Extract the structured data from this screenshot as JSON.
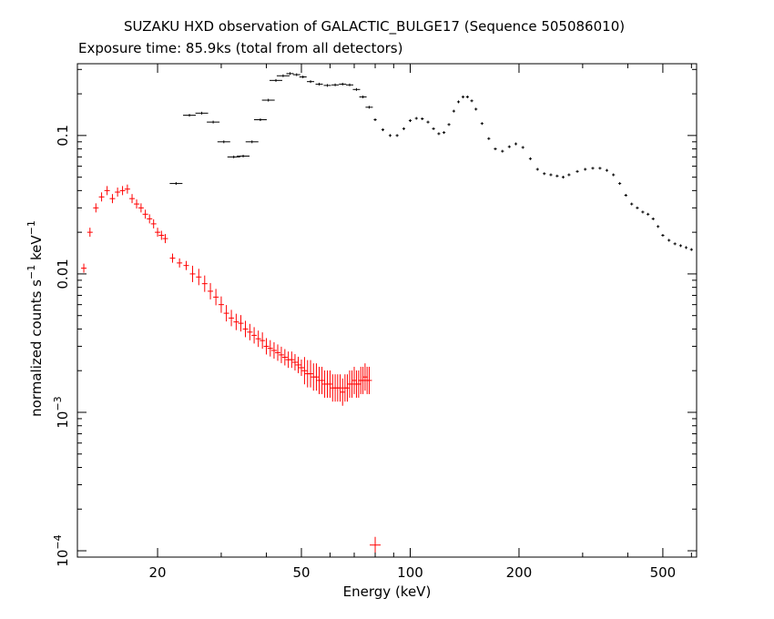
{
  "chart_data": {
    "type": "scatter",
    "title": "SUZAKU HXD observation of GALACTIC_BULGE17 (Sequence 505086010)",
    "subtitle": "Exposure time: 85.9ks (total from all detectors)",
    "xlabel": "Energy (keV)",
    "ylabel_main": "normalized counts s",
    "ylabel_exp1": "−1",
    "ylabel_mid": " keV",
    "ylabel_exp2": "−1",
    "xscale": "log",
    "yscale": "log",
    "xlim": [
      12,
      620
    ],
    "ylim": [
      9e-05,
      0.33
    ],
    "x_ticks": [
      {
        "value": 20,
        "label": "20"
      },
      {
        "value": 50,
        "label": "50"
      },
      {
        "value": 100,
        "label": "100"
      },
      {
        "value": 200,
        "label": "200"
      },
      {
        "value": 500,
        "label": "500"
      }
    ],
    "y_ticks": [
      {
        "value": 0.1,
        "label": "0.1",
        "exp": ""
      },
      {
        "value": 0.01,
        "label": "0.01",
        "exp": ""
      },
      {
        "value": 0.001,
        "label": "10",
        "exp": "−3"
      },
      {
        "value": 0.0001,
        "label": "10",
        "exp": "−4"
      }
    ],
    "series": [
      {
        "color": "#000000",
        "points": [
          [
            22.5,
            0.045
          ],
          [
            24.5,
            0.14
          ],
          [
            26.5,
            0.145
          ],
          [
            28.5,
            0.125
          ],
          [
            30.5,
            0.09
          ],
          [
            32.5,
            0.07
          ],
          [
            34.5,
            0.071
          ],
          [
            36.5,
            0.09
          ],
          [
            38.5,
            0.13
          ],
          [
            40.5,
            0.18
          ],
          [
            42.5,
            0.25
          ],
          [
            44.5,
            0.27
          ],
          [
            46.5,
            0.28
          ],
          [
            48.5,
            0.275
          ],
          [
            50.5,
            0.265
          ],
          [
            53,
            0.245
          ],
          [
            56,
            0.235
          ],
          [
            59,
            0.23
          ],
          [
            62,
            0.232
          ],
          [
            65,
            0.235
          ],
          [
            68,
            0.232
          ],
          [
            71,
            0.215
          ],
          [
            74,
            0.19
          ],
          [
            77,
            0.16
          ],
          [
            80,
            0.13
          ],
          [
            84,
            0.11
          ],
          [
            88,
            0.1
          ],
          [
            92,
            0.1
          ],
          [
            96,
            0.112
          ],
          [
            100,
            0.128
          ],
          [
            104,
            0.133
          ],
          [
            108,
            0.132
          ],
          [
            112,
            0.125
          ],
          [
            116,
            0.112
          ],
          [
            120,
            0.103
          ],
          [
            124,
            0.105
          ],
          [
            128,
            0.12
          ],
          [
            132,
            0.15
          ],
          [
            136,
            0.175
          ],
          [
            140,
            0.19
          ],
          [
            144,
            0.19
          ],
          [
            148,
            0.178
          ],
          [
            152,
            0.155
          ],
          [
            158,
            0.122
          ],
          [
            165,
            0.095
          ],
          [
            172,
            0.08
          ],
          [
            180,
            0.077
          ],
          [
            188,
            0.083
          ],
          [
            196,
            0.087
          ],
          [
            205,
            0.082
          ],
          [
            215,
            0.068
          ],
          [
            225,
            0.057
          ],
          [
            235,
            0.053
          ],
          [
            245,
            0.052
          ],
          [
            255,
            0.051
          ],
          [
            265,
            0.05
          ],
          [
            275,
            0.052
          ],
          [
            290,
            0.055
          ],
          [
            305,
            0.057
          ],
          [
            320,
            0.058
          ],
          [
            335,
            0.058
          ],
          [
            350,
            0.056
          ],
          [
            365,
            0.052
          ],
          [
            380,
            0.045
          ],
          [
            395,
            0.037
          ],
          [
            410,
            0.032
          ],
          [
            425,
            0.03
          ],
          [
            440,
            0.028
          ],
          [
            455,
            0.027
          ],
          [
            470,
            0.025
          ],
          [
            485,
            0.022
          ],
          [
            500,
            0.019
          ],
          [
            520,
            0.0175
          ],
          [
            540,
            0.0165
          ],
          [
            560,
            0.016
          ],
          [
            580,
            0.0155
          ],
          [
            600,
            0.015
          ]
        ]
      },
      {
        "color": "#ff0000",
        "points": [
          [
            12.5,
            0.011
          ],
          [
            13.0,
            0.02
          ],
          [
            13.5,
            0.03
          ],
          [
            14.0,
            0.036
          ],
          [
            14.5,
            0.04
          ],
          [
            15.0,
            0.035
          ],
          [
            15.5,
            0.039
          ],
          [
            16.0,
            0.04
          ],
          [
            16.5,
            0.041
          ],
          [
            17.0,
            0.035
          ],
          [
            17.5,
            0.032
          ],
          [
            18.0,
            0.03
          ],
          [
            18.5,
            0.027
          ],
          [
            19.0,
            0.025
          ],
          [
            19.5,
            0.023
          ],
          [
            20.0,
            0.02
          ],
          [
            20.5,
            0.019
          ],
          [
            21.0,
            0.018
          ],
          [
            22.0,
            0.013
          ],
          [
            23.0,
            0.012
          ],
          [
            24.0,
            0.0115
          ],
          [
            25.0,
            0.01
          ],
          [
            26.0,
            0.0095
          ],
          [
            27.0,
            0.0085
          ],
          [
            28.0,
            0.0075
          ],
          [
            29.0,
            0.0068
          ],
          [
            30.0,
            0.006
          ],
          [
            31.0,
            0.0052
          ],
          [
            32.0,
            0.0048
          ],
          [
            33.0,
            0.0045
          ],
          [
            34.0,
            0.0044
          ],
          [
            35.0,
            0.004
          ],
          [
            36.0,
            0.0038
          ],
          [
            37.0,
            0.0036
          ],
          [
            38.0,
            0.0034
          ],
          [
            39.0,
            0.0033
          ],
          [
            40.0,
            0.003
          ],
          [
            41.0,
            0.0029
          ],
          [
            42.0,
            0.0028
          ],
          [
            43.0,
            0.0027
          ],
          [
            44.0,
            0.0026
          ],
          [
            45.0,
            0.0025
          ],
          [
            46.0,
            0.0024
          ],
          [
            47.0,
            0.0024
          ],
          [
            48.0,
            0.0023
          ],
          [
            49.0,
            0.0022
          ],
          [
            50.0,
            0.0021
          ],
          [
            51.0,
            0.002
          ],
          [
            52.0,
            0.0019
          ],
          [
            53.0,
            0.0019
          ],
          [
            54.0,
            0.0018
          ],
          [
            55.0,
            0.0018
          ],
          [
            56.0,
            0.0017
          ],
          [
            57.0,
            0.0017
          ],
          [
            58.0,
            0.0016
          ],
          [
            59.0,
            0.0016
          ],
          [
            60.0,
            0.0016
          ],
          [
            61.0,
            0.0015
          ],
          [
            62.0,
            0.0015
          ],
          [
            63.0,
            0.0015
          ],
          [
            64.0,
            0.0015
          ],
          [
            65.0,
            0.0014
          ],
          [
            66.0,
            0.0015
          ],
          [
            67.0,
            0.0015
          ],
          [
            68.0,
            0.0016
          ],
          [
            69.0,
            0.0016
          ],
          [
            70.0,
            0.0017
          ],
          [
            71.0,
            0.0016
          ],
          [
            72.0,
            0.0016
          ],
          [
            73.0,
            0.0017
          ],
          [
            74.0,
            0.0017
          ],
          [
            75.0,
            0.0018
          ],
          [
            76.0,
            0.0017
          ],
          [
            77.0,
            0.0017
          ],
          [
            80.0,
            0.00011
          ]
        ]
      }
    ]
  }
}
